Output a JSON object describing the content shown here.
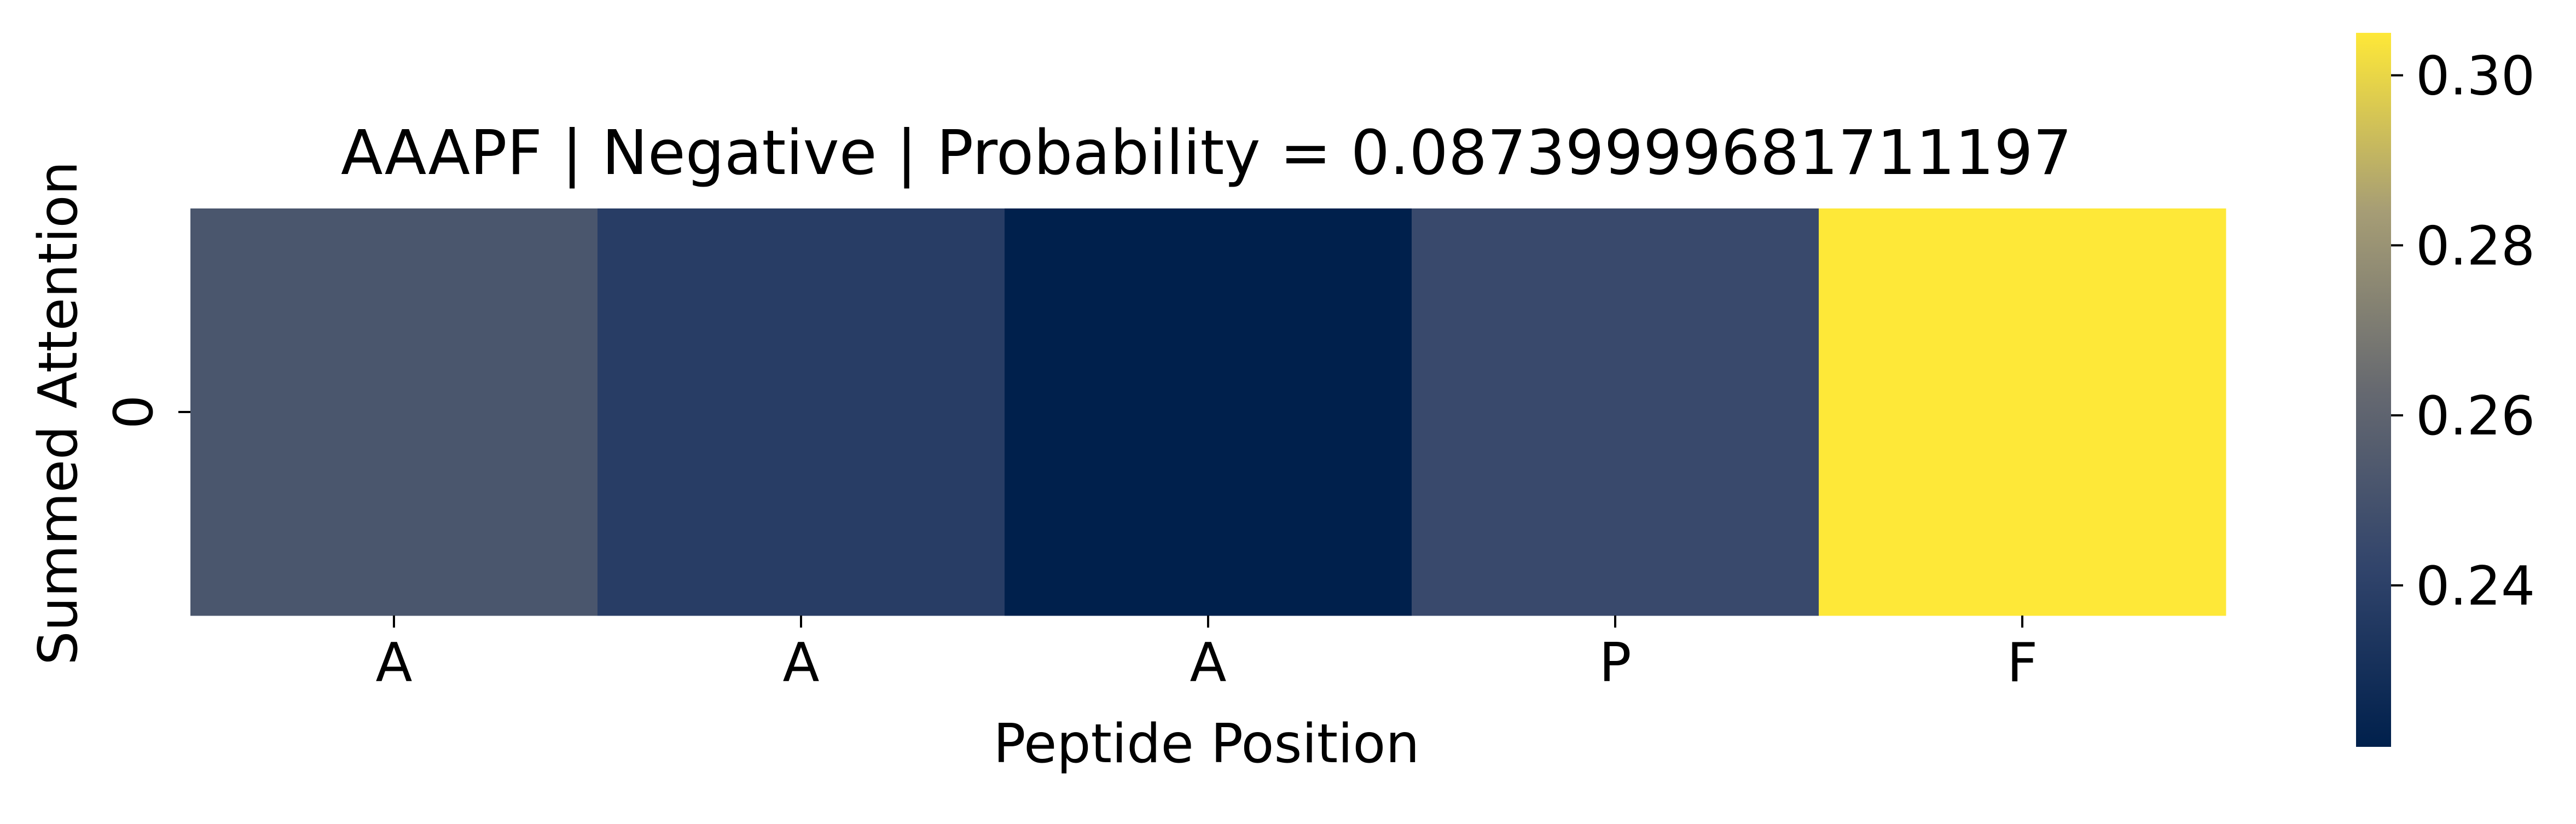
{
  "chart_data": {
    "type": "heatmap",
    "title": "AAAPF | Negative | Probability = 0.08739999681711197",
    "xlabel": "Peptide Position",
    "ylabel": "Summed Attention",
    "x_tick_labels": [
      "A",
      "A",
      "A",
      "P",
      "F"
    ],
    "y_tick_labels": [
      "0"
    ],
    "values": [
      [
        0.252,
        0.238,
        0.221,
        0.245,
        0.305
      ]
    ],
    "colormap": "cividis",
    "colorbar": {
      "min": 0.221,
      "max": 0.305,
      "ticks": [
        0.24,
        0.26,
        0.28,
        0.3
      ],
      "tick_labels": [
        "0.24",
        "0.26",
        "0.28",
        "0.30"
      ]
    },
    "grid": false,
    "legend": "none"
  }
}
